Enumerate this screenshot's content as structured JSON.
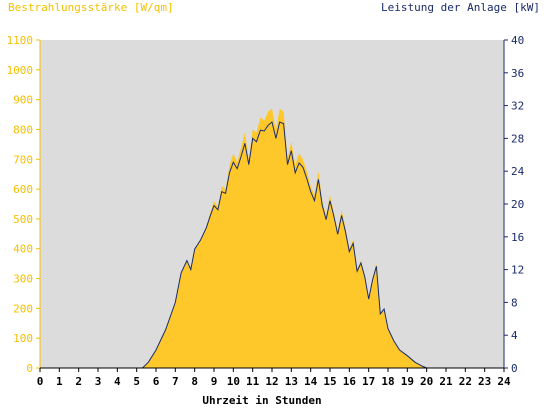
{
  "chart_data": {
    "type": "area",
    "ylabel_left": "Bestrahlungsstärke [W/qm]",
    "ylabel_right": "Leistung der Anlage [kW]",
    "xlabel": "Uhrzeit in Stunden",
    "xlim": [
      0,
      24
    ],
    "ylim_left": [
      0,
      1100
    ],
    "ylim_right": [
      0,
      40
    ],
    "x_ticks": [
      0,
      1,
      2,
      3,
      4,
      5,
      6,
      7,
      8,
      9,
      10,
      11,
      12,
      13,
      14,
      15,
      16,
      17,
      18,
      19,
      20,
      21,
      22,
      23,
      24
    ],
    "y_ticks_left": [
      0,
      100,
      200,
      300,
      400,
      500,
      600,
      700,
      800,
      900,
      1000,
      1100
    ],
    "y_ticks_right": [
      0,
      4,
      8,
      12,
      16,
      20,
      24,
      28,
      32,
      36,
      40
    ],
    "grid": false,
    "colors": {
      "irradiance": "#ffc82a",
      "power": "#1a2b6b",
      "left_axis_text": "#f5c000",
      "right_axis_text": "#1a2b6b",
      "plot_background": "#dcdcdc"
    },
    "series": [
      {
        "name": "Bestrahlungsstärke",
        "axis": "left",
        "x": [
          0,
          5.3,
          5.6,
          6.0,
          6.5,
          7.0,
          7.3,
          7.6,
          7.8,
          8.0,
          8.3,
          8.6,
          8.8,
          9.0,
          9.2,
          9.4,
          9.6,
          9.8,
          10.0,
          10.2,
          10.4,
          10.6,
          10.8,
          11.0,
          11.2,
          11.4,
          11.6,
          11.8,
          12.0,
          12.2,
          12.4,
          12.6,
          12.8,
          13.0,
          13.2,
          13.4,
          13.6,
          13.8,
          14.0,
          14.2,
          14.4,
          14.6,
          14.8,
          15.0,
          15.2,
          15.4,
          15.6,
          15.8,
          16.0,
          16.2,
          16.4,
          16.6,
          16.8,
          17.0,
          17.2,
          17.4,
          17.6,
          17.8,
          18.0,
          18.3,
          18.6,
          19.0,
          19.4,
          19.8,
          20.0,
          24
        ],
        "y": [
          0,
          0,
          20,
          60,
          130,
          220,
          320,
          360,
          330,
          400,
          430,
          470,
          520,
          560,
          540,
          610,
          600,
          680,
          720,
          690,
          740,
          790,
          700,
          800,
          790,
          840,
          830,
          860,
          870,
          800,
          870,
          860,
          700,
          760,
          680,
          720,
          700,
          660,
          610,
          580,
          660,
          560,
          510,
          580,
          520,
          460,
          530,
          470,
          400,
          430,
          330,
          360,
          310,
          230,
          300,
          350,
          180,
          200,
          130,
          90,
          60,
          40,
          20,
          5,
          0,
          0
        ]
      },
      {
        "name": "Leistung der Anlage",
        "axis": "right",
        "x": [
          0,
          5.3,
          5.6,
          6.0,
          6.5,
          7.0,
          7.3,
          7.6,
          7.8,
          8.0,
          8.3,
          8.6,
          8.8,
          9.0,
          9.2,
          9.4,
          9.6,
          9.8,
          10.0,
          10.2,
          10.4,
          10.6,
          10.8,
          11.0,
          11.2,
          11.4,
          11.6,
          11.8,
          12.0,
          12.2,
          12.4,
          12.6,
          12.8,
          13.0,
          13.2,
          13.4,
          13.6,
          13.8,
          14.0,
          14.2,
          14.4,
          14.6,
          14.8,
          15.0,
          15.2,
          15.4,
          15.6,
          15.8,
          16.0,
          16.2,
          16.4,
          16.6,
          16.8,
          17.0,
          17.2,
          17.4,
          17.6,
          17.8,
          18.0,
          18.3,
          18.6,
          19.0,
          19.4,
          19.8,
          20.0,
          24
        ],
        "y": [
          0,
          0,
          0.7,
          2.2,
          4.7,
          8.0,
          11.6,
          13.1,
          12.0,
          14.5,
          15.6,
          17.1,
          18.5,
          19.8,
          19.3,
          21.5,
          21.3,
          23.8,
          25.1,
          24.3,
          25.8,
          27.4,
          24.8,
          28.0,
          27.6,
          29.0,
          28.9,
          29.6,
          30.0,
          28.0,
          30.0,
          29.8,
          24.8,
          26.5,
          23.8,
          25.0,
          24.5,
          23.1,
          21.5,
          20.4,
          23.0,
          19.8,
          18.1,
          20.4,
          18.5,
          16.3,
          18.6,
          16.6,
          14.2,
          15.2,
          11.8,
          12.8,
          11.1,
          8.4,
          10.7,
          12.4,
          6.6,
          7.2,
          4.8,
          3.3,
          2.2,
          1.5,
          0.7,
          0.2,
          0,
          0
        ]
      }
    ]
  }
}
